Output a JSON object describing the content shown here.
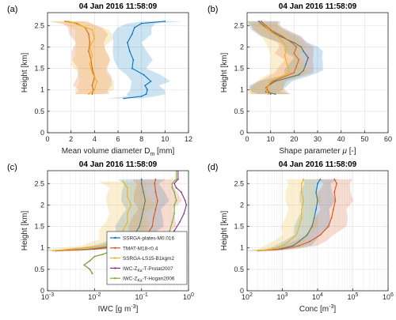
{
  "figure": {
    "legend": [
      {
        "name": "SSRGA-plates-M0.016",
        "color": "#0072BD"
      },
      {
        "name": "TMAT-M18-r0.4",
        "color": "#D95319"
      },
      {
        "name": "SSRGA-LS15-B1kgm2",
        "color": "#EDB120"
      },
      {
        "name": "IWC-Z",
        "sub": "Ka",
        "tail": "-T-Protat2007",
        "color": "#7E2F8E"
      },
      {
        "name": "IWC-Z",
        "sub": "Ka",
        "tail": "-T-Hogan2006",
        "color": "#77AC30"
      }
    ]
  },
  "chart_data": [
    {
      "panel": "(a)",
      "type": "line",
      "title": "04 Jan 2016 11:58:09",
      "xlabel": "Mean volume diameter D",
      "xlabel_sub": "m",
      "xlabel_tail": " [mm]",
      "ylabel": "Height [km]",
      "xlim": [
        0,
        12
      ],
      "ylim": [
        0,
        2.8
      ],
      "xscale": "linear",
      "xticks": [
        "0",
        "2",
        "4",
        "6",
        "8",
        "10",
        "12"
      ],
      "yticks": [
        "0",
        "0.5",
        "1",
        "1.5",
        "2",
        "2.5"
      ],
      "series": [
        {
          "color": "#0072BD",
          "band": true,
          "points": [
            [
              10.0,
              2.6
            ],
            [
              8.0,
              2.55
            ],
            [
              7.4,
              2.45
            ],
            [
              7.2,
              2.3
            ],
            [
              6.8,
              2.1
            ],
            [
              7.0,
              1.9
            ],
            [
              7.3,
              1.7
            ],
            [
              7.2,
              1.5
            ],
            [
              8.2,
              1.35
            ],
            [
              8.8,
              1.2
            ],
            [
              8.3,
              1.1
            ],
            [
              8.5,
              1.0
            ],
            [
              8.4,
              0.9
            ],
            [
              8.0,
              0.85
            ],
            [
              6.5,
              0.8
            ]
          ]
        },
        {
          "color": "#D95319",
          "band": true,
          "points": [
            [
              1.5,
              2.6
            ],
            [
              2.5,
              2.55
            ],
            [
              3.2,
              2.45
            ],
            [
              3.5,
              2.3
            ],
            [
              3.6,
              2.1
            ],
            [
              3.5,
              1.9
            ],
            [
              3.7,
              1.7
            ],
            [
              3.8,
              1.5
            ],
            [
              4.0,
              1.3
            ],
            [
              3.8,
              1.1
            ],
            [
              3.9,
              1.0
            ],
            [
              3.8,
              0.9
            ]
          ]
        },
        {
          "color": "#EDB120",
          "band": true,
          "points": [
            [
              1.8,
              2.6
            ],
            [
              2.8,
              2.5
            ],
            [
              3.8,
              2.4
            ],
            [
              4.0,
              2.2
            ],
            [
              3.6,
              2.0
            ],
            [
              3.8,
              1.8
            ],
            [
              3.6,
              1.6
            ],
            [
              3.8,
              1.4
            ],
            [
              4.2,
              1.2
            ],
            [
              4.0,
              1.0
            ],
            [
              3.5,
              0.9
            ]
          ]
        }
      ]
    },
    {
      "panel": "(b)",
      "type": "line",
      "title": "04 Jan 2016 11:58:09",
      "xlabel": "Shape parameter ",
      "xlabel_greek": "μ",
      "xlabel_tail": " [-]",
      "ylabel": "Height [km]",
      "xlim": [
        0,
        60
      ],
      "ylim": [
        0,
        2.8
      ],
      "xscale": "linear",
      "xticks": [
        "0",
        "10",
        "20",
        "30",
        "40",
        "50",
        "60"
      ],
      "yticks": [
        "0",
        "0.5",
        "1",
        "1.5",
        "2",
        "2.5"
      ],
      "series": [
        {
          "color": "#0072BD",
          "band": true,
          "points": [
            [
              5,
              2.6
            ],
            [
              7,
              2.5
            ],
            [
              9,
              2.4
            ],
            [
              14,
              2.25
            ],
            [
              20,
              2.1
            ],
            [
              23,
              2.0
            ],
            [
              24,
              1.9
            ],
            [
              26,
              1.75
            ],
            [
              25,
              1.6
            ],
            [
              24,
              1.45
            ],
            [
              22,
              1.35
            ],
            [
              12,
              1.2
            ],
            [
              9,
              1.1
            ],
            [
              8,
              0.95
            ],
            [
              12,
              0.9
            ]
          ]
        },
        {
          "color": "#D95319",
          "band": true,
          "points": [
            [
              6,
              2.6
            ],
            [
              8,
              2.5
            ],
            [
              10,
              2.4
            ],
            [
              15,
              2.25
            ],
            [
              19,
              2.1
            ],
            [
              21,
              2.0
            ],
            [
              20,
              1.85
            ],
            [
              22,
              1.7
            ],
            [
              21,
              1.55
            ],
            [
              20,
              1.4
            ],
            [
              11,
              1.2
            ],
            [
              8,
              1.05
            ],
            [
              10,
              0.9
            ]
          ]
        },
        {
          "color": "#EDB120",
          "band": true,
          "points": [
            [
              5,
              2.55
            ],
            [
              9,
              2.4
            ],
            [
              14,
              2.2
            ],
            [
              17,
              2.0
            ],
            [
              16,
              1.8
            ],
            [
              17,
              1.6
            ],
            [
              18,
              1.4
            ],
            [
              10,
              1.2
            ],
            [
              8,
              1.0
            ],
            [
              9,
              0.9
            ]
          ]
        }
      ]
    },
    {
      "panel": "(c)",
      "type": "line",
      "title": "04 Jan 2016 11:58:09",
      "xlabel": "IWC [g m",
      "xlabel_sup": "-3",
      "xlabel_tail": "]",
      "ylabel": "Height [km]",
      "xlim": [
        0.001,
        1
      ],
      "ylim": [
        0,
        2.8
      ],
      "xscale": "log",
      "xticks": [
        "10",
        "10",
        "10",
        "10"
      ],
      "xticks_sup": [
        "-3",
        "-2",
        "-1",
        "0"
      ],
      "yticks": [
        "0",
        "0.5",
        "1",
        "1.5",
        "2",
        "2.5"
      ],
      "series": [
        {
          "color": "#0072BD",
          "band": true,
          "points": [
            [
              0.1,
              2.6
            ],
            [
              0.1,
              2.5
            ],
            [
              0.11,
              2.3
            ],
            [
              0.12,
              2.1
            ],
            [
              0.11,
              1.9
            ],
            [
              0.1,
              1.7
            ],
            [
              0.09,
              1.5
            ],
            [
              0.07,
              1.3
            ],
            [
              0.05,
              1.15
            ],
            [
              0.03,
              1.05
            ],
            [
              0.008,
              0.97
            ],
            [
              0.0015,
              0.93
            ]
          ]
        },
        {
          "color": "#D95319",
          "band": true,
          "points": [
            [
              0.2,
              2.6
            ],
            [
              0.19,
              2.5
            ],
            [
              0.2,
              2.3
            ],
            [
              0.22,
              2.1
            ],
            [
              0.2,
              1.9
            ],
            [
              0.18,
              1.7
            ],
            [
              0.17,
              1.5
            ],
            [
              0.13,
              1.3
            ],
            [
              0.09,
              1.15
            ],
            [
              0.05,
              1.05
            ],
            [
              0.01,
              0.97
            ],
            [
              0.0015,
              0.93
            ]
          ]
        },
        {
          "color": "#EDB120",
          "band": true,
          "points": [
            [
              0.04,
              2.55
            ],
            [
              0.05,
              2.4
            ],
            [
              0.05,
              2.2
            ],
            [
              0.06,
              2.0
            ],
            [
              0.05,
              1.8
            ],
            [
              0.05,
              1.6
            ],
            [
              0.04,
              1.4
            ],
            [
              0.03,
              1.2
            ],
            [
              0.015,
              1.05
            ],
            [
              0.003,
              0.97
            ],
            [
              0.0013,
              0.93
            ]
          ]
        },
        {
          "color": "#7E2F8E",
          "band": false,
          "points": [
            [
              0.6,
              2.8
            ],
            [
              0.6,
              2.6
            ],
            [
              0.5,
              2.5
            ],
            [
              0.55,
              2.4
            ],
            [
              0.7,
              2.3
            ],
            [
              0.85,
              2.1
            ],
            [
              0.9,
              2.0
            ],
            [
              0.8,
              1.8
            ],
            [
              0.65,
              1.6
            ],
            [
              0.5,
              1.4
            ],
            [
              0.35,
              1.25
            ],
            [
              0.2,
              1.15
            ],
            [
              0.1,
              1.05
            ],
            [
              0.03,
              0.95
            ],
            [
              0.02,
              0.9
            ],
            [
              0.015,
              0.85
            ],
            [
              0.01,
              0.8
            ],
            [
              0.008,
              0.7
            ],
            [
              0.006,
              0.6
            ],
            [
              0.008,
              0.5
            ],
            [
              0.009,
              0.4
            ]
          ]
        },
        {
          "color": "#77AC30",
          "band": false,
          "points": [
            [
              0.55,
              2.8
            ],
            [
              0.55,
              2.6
            ],
            [
              0.45,
              2.5
            ],
            [
              0.45,
              2.4
            ],
            [
              0.5,
              2.3
            ],
            [
              0.55,
              2.1
            ],
            [
              0.5,
              2.0
            ],
            [
              0.5,
              1.8
            ],
            [
              0.45,
              1.6
            ],
            [
              0.4,
              1.4
            ],
            [
              0.3,
              1.25
            ],
            [
              0.18,
              1.15
            ],
            [
              0.09,
              1.05
            ],
            [
              0.03,
              0.95
            ],
            [
              0.02,
              0.9
            ],
            [
              0.015,
              0.85
            ],
            [
              0.01,
              0.8
            ],
            [
              0.008,
              0.7
            ],
            [
              0.006,
              0.6
            ],
            [
              0.008,
              0.5
            ],
            [
              0.009,
              0.4
            ]
          ]
        }
      ]
    },
    {
      "panel": "(d)",
      "type": "line",
      "title": "04 Jan 2016 11:58:09",
      "xlabel": "Conc [m",
      "xlabel_sup": "-3",
      "xlabel_tail": "]",
      "ylabel": "Height [km]",
      "xlim": [
        100,
        1000000
      ],
      "ylim": [
        0,
        2.8
      ],
      "xscale": "log",
      "xticks": [
        "10",
        "10",
        "10",
        "10",
        "10"
      ],
      "xticks_sup": [
        "2",
        "3",
        "4",
        "5",
        "6"
      ],
      "yticks": [
        "0",
        "0.5",
        "1",
        "1.5",
        "2",
        "2.5"
      ],
      "series": [
        {
          "color": "#0072BD",
          "band": true,
          "points": [
            [
              12000,
              2.6
            ],
            [
              10000,
              2.5
            ],
            [
              9000,
              2.3
            ],
            [
              10000,
              2.1
            ],
            [
              9000,
              1.9
            ],
            [
              8000,
              1.7
            ],
            [
              7000,
              1.5
            ],
            [
              5000,
              1.3
            ],
            [
              3000,
              1.15
            ],
            [
              2000,
              1.05
            ],
            [
              800,
              0.97
            ],
            [
              200,
              0.93
            ]
          ]
        },
        {
          "color": "#D95319",
          "band": true,
          "points": [
            [
              30000,
              2.6
            ],
            [
              35000,
              2.5
            ],
            [
              30000,
              2.3
            ],
            [
              32000,
              2.1
            ],
            [
              28000,
              1.9
            ],
            [
              25000,
              1.7
            ],
            [
              20000,
              1.5
            ],
            [
              12000,
              1.3
            ],
            [
              6000,
              1.15
            ],
            [
              3000,
              1.05
            ],
            [
              1000,
              0.97
            ],
            [
              200,
              0.93
            ]
          ]
        },
        {
          "color": "#EDB120",
          "band": true,
          "points": [
            [
              4000,
              2.6
            ],
            [
              3500,
              2.5
            ],
            [
              3500,
              2.3
            ],
            [
              4000,
              2.1
            ],
            [
              3500,
              1.9
            ],
            [
              3500,
              1.7
            ],
            [
              3000,
              1.5
            ],
            [
              2500,
              1.3
            ],
            [
              1500,
              1.15
            ],
            [
              1000,
              1.05
            ],
            [
              500,
              0.97
            ],
            [
              200,
              0.93
            ]
          ]
        }
      ]
    }
  ]
}
